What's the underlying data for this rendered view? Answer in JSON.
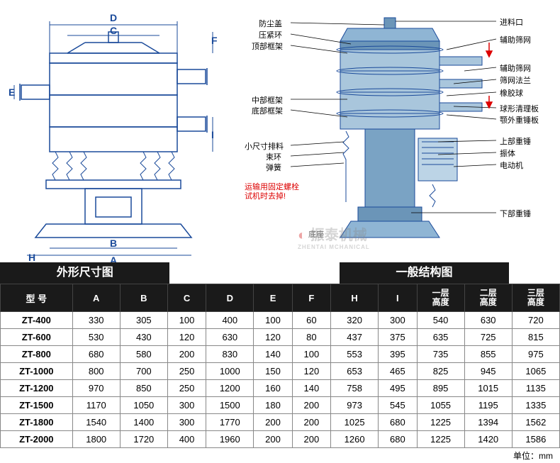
{
  "left_diagram": {
    "title": "外形尺寸图",
    "dims": [
      "A",
      "B",
      "C",
      "D",
      "E",
      "F",
      "H",
      "I"
    ],
    "stroke": "#1a4a9a",
    "bg": "#ffffff"
  },
  "right_diagram": {
    "title": "一般结构图",
    "labels_left": [
      "防尘盖",
      "压紧环",
      "顶部框架",
      "中部框架",
      "底部框架",
      "小尺寸排料",
      "束环",
      "弹簧"
    ],
    "labels_right_top": [
      "进料口",
      "辅助筛网",
      "辅助筛网",
      "筛网法兰",
      "橡胶球",
      "球形清理板",
      "颚外重锤板",
      "上部重锤",
      "振体",
      "电动机",
      "下部重锤"
    ],
    "red_note1": "运输用固定螺栓",
    "red_note2": "试机时去掉!",
    "base_label": "底座",
    "body_fill": "#5a8ab0",
    "arrow_color": "#d00000",
    "line_color": "#1a4a9a"
  },
  "watermark": "振泰机械",
  "watermark_sub": "ZHENTAI MCHANICAL",
  "table": {
    "headers": [
      "型 号",
      "A",
      "B",
      "C",
      "D",
      "E",
      "F",
      "H",
      "I",
      "一层\n高度",
      "二层\n高度",
      "三层\n高度"
    ],
    "rows": [
      [
        "ZT-400",
        "330",
        "305",
        "100",
        "400",
        "100",
        "60",
        "320",
        "300",
        "540",
        "630",
        "720"
      ],
      [
        "ZT-600",
        "530",
        "430",
        "120",
        "630",
        "120",
        "80",
        "437",
        "375",
        "635",
        "725",
        "815"
      ],
      [
        "ZT-800",
        "680",
        "580",
        "200",
        "830",
        "140",
        "100",
        "553",
        "395",
        "735",
        "855",
        "975"
      ],
      [
        "ZT-1000",
        "800",
        "700",
        "250",
        "1000",
        "150",
        "120",
        "653",
        "465",
        "825",
        "945",
        "1065"
      ],
      [
        "ZT-1200",
        "970",
        "850",
        "250",
        "1200",
        "160",
        "140",
        "758",
        "495",
        "895",
        "1015",
        "1135"
      ],
      [
        "ZT-1500",
        "1170",
        "1050",
        "300",
        "1500",
        "180",
        "200",
        "973",
        "545",
        "1055",
        "1195",
        "1335"
      ],
      [
        "ZT-1800",
        "1540",
        "1400",
        "300",
        "1770",
        "200",
        "200",
        "1025",
        "680",
        "1225",
        "1394",
        "1562"
      ],
      [
        "ZT-2000",
        "1800",
        "1720",
        "400",
        "1960",
        "200",
        "200",
        "1260",
        "680",
        "1225",
        "1420",
        "1586"
      ]
    ],
    "unit_label": "单位：mm"
  }
}
